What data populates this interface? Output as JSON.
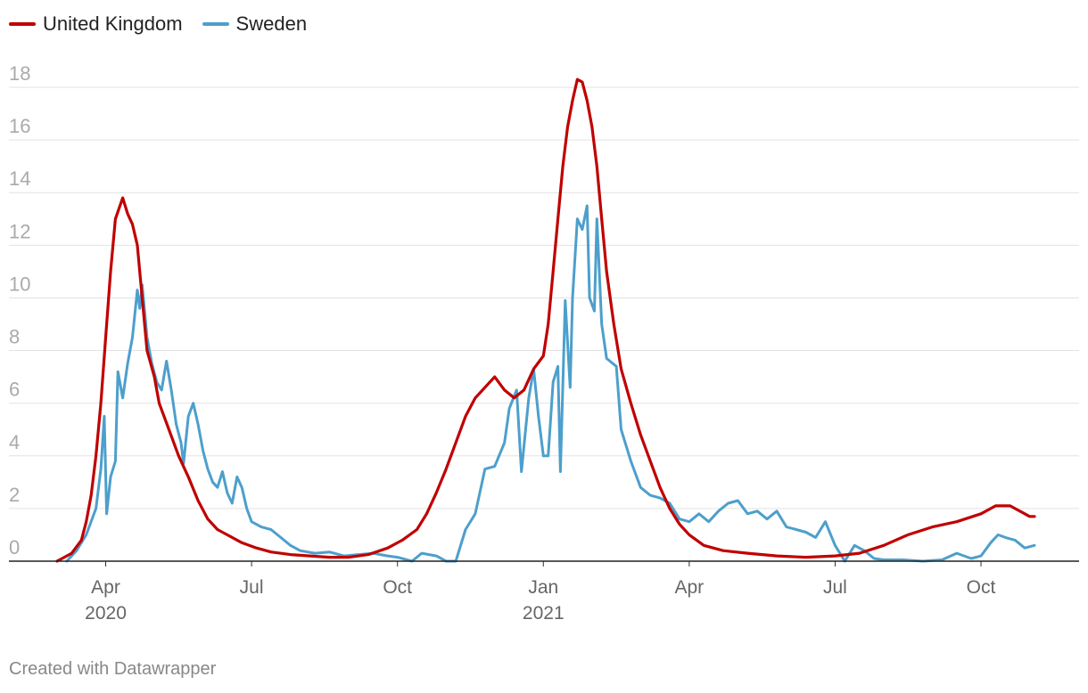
{
  "chart_data": {
    "type": "line",
    "title": "",
    "xlabel": "",
    "ylabel": "",
    "ylim": [
      0,
      18
    ],
    "yticks": [
      "0",
      "2",
      "4",
      "6",
      "8",
      "10",
      "12",
      "14",
      "16",
      "18"
    ],
    "xticks": [
      {
        "label": "Apr",
        "sub": "2020",
        "month_index": 1
      },
      {
        "label": "Jul",
        "sub": "",
        "month_index": 4
      },
      {
        "label": "Oct",
        "sub": "",
        "month_index": 7
      },
      {
        "label": "Jan",
        "sub": "2021",
        "month_index": 10
      },
      {
        "label": "Apr",
        "sub": "",
        "month_index": 13
      },
      {
        "label": "Jul",
        "sub": "",
        "month_index": 16
      },
      {
        "label": "Oct",
        "sub": "",
        "month_index": 19
      }
    ],
    "x_unit": "months since 2020-03-01",
    "series": [
      {
        "name": "United Kingdom",
        "color": "#c00000",
        "points": [
          [
            0.0,
            0
          ],
          [
            0.3,
            0.3
          ],
          [
            0.5,
            0.8
          ],
          [
            0.6,
            1.5
          ],
          [
            0.7,
            2.5
          ],
          [
            0.8,
            4
          ],
          [
            0.9,
            6
          ],
          [
            1.0,
            8.5
          ],
          [
            1.1,
            11
          ],
          [
            1.2,
            13
          ],
          [
            1.35,
            13.8
          ],
          [
            1.45,
            13.2
          ],
          [
            1.55,
            12.8
          ],
          [
            1.65,
            12
          ],
          [
            1.75,
            10
          ],
          [
            1.85,
            8
          ],
          [
            2.0,
            7
          ],
          [
            2.1,
            6
          ],
          [
            2.3,
            5
          ],
          [
            2.5,
            4
          ],
          [
            2.7,
            3.2
          ],
          [
            2.9,
            2.3
          ],
          [
            3.1,
            1.6
          ],
          [
            3.3,
            1.2
          ],
          [
            3.5,
            1.0
          ],
          [
            3.8,
            0.7
          ],
          [
            4.1,
            0.5
          ],
          [
            4.4,
            0.35
          ],
          [
            4.8,
            0.25
          ],
          [
            5.2,
            0.2
          ],
          [
            5.6,
            0.15
          ],
          [
            6.0,
            0.15
          ],
          [
            6.4,
            0.25
          ],
          [
            6.8,
            0.5
          ],
          [
            7.1,
            0.8
          ],
          [
            7.4,
            1.2
          ],
          [
            7.6,
            1.8
          ],
          [
            7.8,
            2.6
          ],
          [
            8.0,
            3.5
          ],
          [
            8.2,
            4.5
          ],
          [
            8.4,
            5.5
          ],
          [
            8.6,
            6.2
          ],
          [
            8.8,
            6.6
          ],
          [
            9.0,
            7.0
          ],
          [
            9.2,
            6.5
          ],
          [
            9.4,
            6.2
          ],
          [
            9.6,
            6.5
          ],
          [
            9.8,
            7.3
          ],
          [
            10.0,
            7.8
          ],
          [
            10.1,
            9
          ],
          [
            10.2,
            11
          ],
          [
            10.3,
            13
          ],
          [
            10.4,
            15
          ],
          [
            10.5,
            16.5
          ],
          [
            10.6,
            17.5
          ],
          [
            10.7,
            18.3
          ],
          [
            10.8,
            18.2
          ],
          [
            10.9,
            17.5
          ],
          [
            11.0,
            16.5
          ],
          [
            11.1,
            15
          ],
          [
            11.2,
            13
          ],
          [
            11.3,
            11
          ],
          [
            11.45,
            9
          ],
          [
            11.6,
            7.3
          ],
          [
            11.8,
            6
          ],
          [
            12.0,
            4.8
          ],
          [
            12.2,
            3.8
          ],
          [
            12.4,
            2.8
          ],
          [
            12.6,
            2.0
          ],
          [
            12.8,
            1.4
          ],
          [
            13.0,
            1.0
          ],
          [
            13.3,
            0.6
          ],
          [
            13.7,
            0.4
          ],
          [
            14.2,
            0.3
          ],
          [
            14.8,
            0.2
          ],
          [
            15.4,
            0.15
          ],
          [
            16.0,
            0.2
          ],
          [
            16.5,
            0.3
          ],
          [
            17.0,
            0.6
          ],
          [
            17.5,
            1.0
          ],
          [
            18.0,
            1.3
          ],
          [
            18.5,
            1.5
          ],
          [
            19.0,
            1.8
          ],
          [
            19.3,
            2.1
          ],
          [
            19.6,
            2.1
          ],
          [
            19.8,
            1.9
          ],
          [
            20.0,
            1.7
          ],
          [
            20.1,
            1.7
          ]
        ]
      },
      {
        "name": "Sweden",
        "color": "#4d9fcc",
        "points": [
          [
            0.2,
            0
          ],
          [
            0.4,
            0.4
          ],
          [
            0.6,
            1.0
          ],
          [
            0.8,
            2.0
          ],
          [
            0.9,
            3.5
          ],
          [
            0.97,
            5.5
          ],
          [
            1.02,
            1.8
          ],
          [
            1.1,
            3.2
          ],
          [
            1.2,
            3.8
          ],
          [
            1.25,
            7.2
          ],
          [
            1.35,
            6.2
          ],
          [
            1.45,
            7.5
          ],
          [
            1.55,
            8.5
          ],
          [
            1.65,
            10.3
          ],
          [
            1.7,
            9.6
          ],
          [
            1.75,
            10.5
          ],
          [
            1.85,
            8.5
          ],
          [
            1.95,
            7.5
          ],
          [
            2.05,
            6.8
          ],
          [
            2.15,
            6.5
          ],
          [
            2.25,
            7.6
          ],
          [
            2.35,
            6.5
          ],
          [
            2.45,
            5.2
          ],
          [
            2.55,
            4.5
          ],
          [
            2.6,
            3.7
          ],
          [
            2.7,
            5.5
          ],
          [
            2.8,
            6.0
          ],
          [
            2.9,
            5.2
          ],
          [
            3.0,
            4.2
          ],
          [
            3.1,
            3.5
          ],
          [
            3.2,
            3.0
          ],
          [
            3.3,
            2.8
          ],
          [
            3.4,
            3.4
          ],
          [
            3.5,
            2.6
          ],
          [
            3.6,
            2.2
          ],
          [
            3.7,
            3.2
          ],
          [
            3.8,
            2.8
          ],
          [
            3.9,
            2.0
          ],
          [
            4.0,
            1.5
          ],
          [
            4.2,
            1.3
          ],
          [
            4.4,
            1.2
          ],
          [
            4.6,
            0.9
          ],
          [
            4.8,
            0.6
          ],
          [
            5.0,
            0.4
          ],
          [
            5.3,
            0.3
          ],
          [
            5.6,
            0.35
          ],
          [
            5.9,
            0.2
          ],
          [
            6.2,
            0.25
          ],
          [
            6.5,
            0.3
          ],
          [
            6.8,
            0.2
          ],
          [
            7.0,
            0.15
          ],
          [
            7.3,
            0.0
          ],
          [
            7.5,
            0.3
          ],
          [
            7.8,
            0.2
          ],
          [
            8.0,
            0.0
          ],
          [
            8.2,
            0.0
          ],
          [
            8.4,
            1.2
          ],
          [
            8.6,
            1.8
          ],
          [
            8.8,
            3.5
          ],
          [
            9.0,
            3.6
          ],
          [
            9.2,
            4.5
          ],
          [
            9.3,
            5.8
          ],
          [
            9.45,
            6.5
          ],
          [
            9.55,
            3.4
          ],
          [
            9.7,
            6.2
          ],
          [
            9.8,
            7.3
          ],
          [
            9.9,
            5.5
          ],
          [
            10.0,
            4.0
          ],
          [
            10.1,
            4.0
          ],
          [
            10.2,
            6.8
          ],
          [
            10.3,
            7.4
          ],
          [
            10.35,
            3.4
          ],
          [
            10.45,
            9.9
          ],
          [
            10.55,
            6.6
          ],
          [
            10.6,
            10.0
          ],
          [
            10.7,
            13.0
          ],
          [
            10.8,
            12.6
          ],
          [
            10.9,
            13.5
          ],
          [
            10.95,
            10.0
          ],
          [
            11.05,
            9.5
          ],
          [
            11.1,
            13.0
          ],
          [
            11.2,
            9.0
          ],
          [
            11.3,
            7.7
          ],
          [
            11.5,
            7.4
          ],
          [
            11.6,
            5.0
          ],
          [
            11.8,
            3.8
          ],
          [
            12.0,
            2.8
          ],
          [
            12.2,
            2.5
          ],
          [
            12.4,
            2.4
          ],
          [
            12.6,
            2.2
          ],
          [
            12.8,
            1.6
          ],
          [
            13.0,
            1.5
          ],
          [
            13.2,
            1.8
          ],
          [
            13.4,
            1.5
          ],
          [
            13.6,
            1.9
          ],
          [
            13.8,
            2.2
          ],
          [
            14.0,
            2.3
          ],
          [
            14.2,
            1.8
          ],
          [
            14.4,
            1.9
          ],
          [
            14.6,
            1.6
          ],
          [
            14.8,
            1.9
          ],
          [
            15.0,
            1.3
          ],
          [
            15.2,
            1.2
          ],
          [
            15.4,
            1.1
          ],
          [
            15.6,
            0.9
          ],
          [
            15.8,
            1.5
          ],
          [
            16.0,
            0.6
          ],
          [
            16.2,
            0.0
          ],
          [
            16.4,
            0.6
          ],
          [
            16.6,
            0.4
          ],
          [
            16.8,
            0.1
          ],
          [
            17.0,
            0.05
          ],
          [
            17.4,
            0.05
          ],
          [
            17.8,
            0.0
          ],
          [
            18.2,
            0.05
          ],
          [
            18.5,
            0.3
          ],
          [
            18.8,
            0.1
          ],
          [
            19.0,
            0.2
          ],
          [
            19.2,
            0.7
          ],
          [
            19.35,
            1.0
          ],
          [
            19.5,
            0.9
          ],
          [
            19.7,
            0.8
          ],
          [
            19.9,
            0.5
          ],
          [
            20.1,
            0.6
          ]
        ]
      }
    ]
  },
  "legend": [
    {
      "label": "United Kingdom",
      "color": "#c00000"
    },
    {
      "label": "Sweden",
      "color": "#4d9fcc"
    }
  ],
  "footer": "Created with Datawrapper"
}
